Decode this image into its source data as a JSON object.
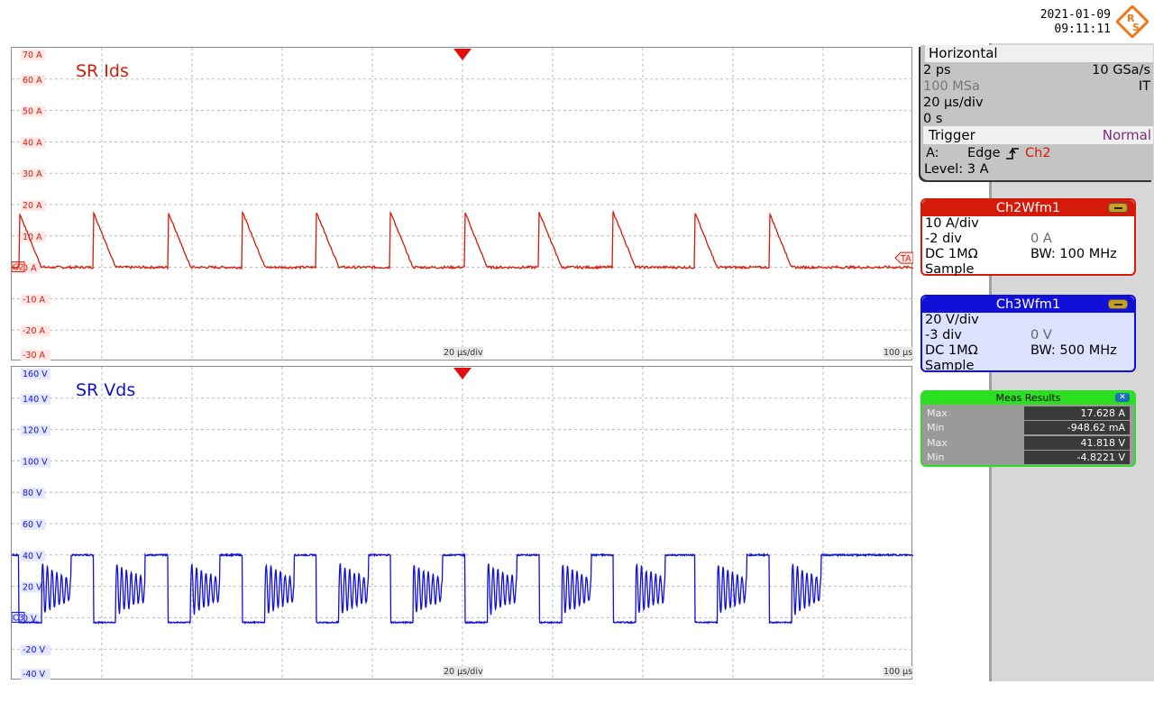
{
  "datetime": {
    "date": "2021-01-09",
    "time": "09:11:11"
  },
  "logo_text": "R S",
  "colors": {
    "ch2": "#d41a08",
    "ch3": "#1010d8",
    "meas": "#2ae020",
    "trigger_mode": "#7a2a80"
  },
  "icons": {
    "trigger_marker": "triangle-down",
    "edge": "rising-edge",
    "logo": "rs-diamond"
  },
  "panel1": {
    "title": "SR Ids",
    "y_ticks": [
      "70 A",
      "60 A",
      "50 A",
      "40 A",
      "30 A",
      "20 A",
      "10 A",
      "0 A",
      "-10 A",
      "-20 A",
      "-30 A"
    ],
    "timebase": "20 µs/div",
    "end_time": "100 µs",
    "ref_marker": "C2",
    "trigger_tag": "TA"
  },
  "panel2": {
    "title": "SR Vds",
    "y_ticks": [
      "160 V",
      "140 V",
      "120 V",
      "100 V",
      "80 V",
      "60 V",
      "40 V",
      "20 V",
      "0 V",
      "-20 V",
      "-40 V"
    ],
    "timebase": "20 µs/div",
    "end_time": "100 µs",
    "ref_marker": "C3"
  },
  "horizontal": {
    "label": "Horizontal",
    "resolution": "2 ps",
    "sample_rate": "10 GSa/s",
    "record_length": "100 MSa",
    "mode": "IT",
    "time_scale": "20 µs/div",
    "position": "0 s"
  },
  "trigger": {
    "label": "Trigger",
    "mode": "Normal",
    "slot": "A:",
    "type": "Edge",
    "source": "Ch2",
    "level": "Level: 3 A"
  },
  "ch2": {
    "title": "Ch2Wfm1",
    "scale": "10 A/div",
    "offset_div": "-2 div",
    "offset": "0 A",
    "coupling": "DC 1MΩ",
    "bw": "BW: 100 MHz",
    "acq": "Sample"
  },
  "ch3": {
    "title": "Ch3Wfm1",
    "scale": "20 V/div",
    "offset_div": "-3 div",
    "offset": "0 V",
    "coupling": "DC 1MΩ",
    "bw": "BW: 500 MHz",
    "acq": "Sample"
  },
  "meas": {
    "title": "Meas Results",
    "close": "✕",
    "rows": [
      {
        "label": "Max",
        "value": "17.628 A"
      },
      {
        "label": "Min",
        "value": "-948.62 mA"
      },
      {
        "label": "Max",
        "value": "41.818 V"
      },
      {
        "label": "Min",
        "value": "-4.8221 V"
      }
    ]
  },
  "chart_data": [
    {
      "type": "line",
      "title": "SR Ids",
      "x_unit": "µs",
      "xlim": [
        0,
        200
      ],
      "ylim": [
        -30,
        70
      ],
      "grid": true,
      "series": [
        {
          "name": "Ch2Wfm1",
          "pulse_starts": [
            1.6,
            18.1,
            34.7,
            51.2,
            67.6,
            84.0,
            100.5,
            117.0,
            133.4,
            151.5,
            168.0
          ],
          "peak": 17.6,
          "fall_time": 5.0,
          "baseline": 0
        }
      ]
    },
    {
      "type": "line",
      "title": "SR Vds",
      "x_unit": "µs",
      "xlim": [
        0,
        200
      ],
      "ylim": [
        -40,
        160
      ],
      "grid": true,
      "series": [
        {
          "name": "Ch3Wfm1",
          "low_starts": [
            1.6,
            18.1,
            34.7,
            51.2,
            67.6,
            84.0,
            100.5,
            117.0,
            133.4,
            151.5,
            168.0
          ],
          "high": 40,
          "low": -3,
          "low_time": 5.0,
          "ring_time": 6.5
        }
      ]
    }
  ]
}
